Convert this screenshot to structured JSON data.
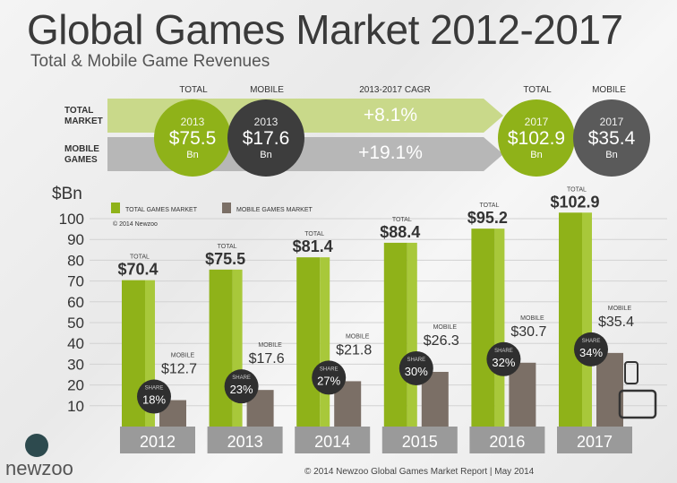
{
  "header": {
    "title": "Global Games Market 2012-2017",
    "subtitle": "Total & Mobile Game Revenues"
  },
  "summary": {
    "col_total": "TOTAL",
    "col_mobile": "MOBILE",
    "col_cagr": "2013-2017 CAGR",
    "col_total_2": "TOTAL",
    "col_mobile_2": "MOBILE",
    "row_total": [
      "TOTAL",
      "MARKET"
    ],
    "row_mobile": [
      "MOBILE",
      "GAMES"
    ],
    "cagr_total": "+8.1%",
    "cagr_mobile": "+19.1%",
    "circles": [
      {
        "year": "2013",
        "value": "$75.5",
        "unit": "Bn"
      },
      {
        "year": "2013",
        "value": "$17.6",
        "unit": "Bn"
      },
      {
        "year": "2017",
        "value": "$102.9",
        "unit": "Bn"
      },
      {
        "year": "2017",
        "value": "$35.4",
        "unit": "Bn"
      }
    ]
  },
  "colors": {
    "total": "#8fb219",
    "total_side": "#a8c83a",
    "mobile": "#7b6f66",
    "share_circle": "#2f2f2f",
    "year_band": "#9a9a9a"
  },
  "chart_data": {
    "type": "bar",
    "ylabel": "$Bn",
    "ylim": [
      0,
      100
    ],
    "yticks": [
      10,
      20,
      30,
      40,
      50,
      60,
      70,
      80,
      90,
      100
    ],
    "categories": [
      "2012",
      "2013",
      "2014",
      "2015",
      "2016",
      "2017"
    ],
    "series": [
      {
        "name": "TOTAL GAMES MARKET",
        "values": [
          70.4,
          75.5,
          81.4,
          88.4,
          95.2,
          102.9
        ]
      },
      {
        "name": "MOBILE GAMES MARKET",
        "values": [
          12.7,
          17.6,
          21.8,
          26.3,
          30.7,
          35.4
        ]
      }
    ],
    "share_values": [
      "18%",
      "23%",
      "27%",
      "30%",
      "32%",
      "34%"
    ],
    "total_labels": [
      "$70.4",
      "$75.5",
      "$81.4",
      "$88.4",
      "$95.2",
      "$102.9"
    ],
    "mobile_labels": [
      "$12.7",
      "$17.6",
      "$21.8",
      "$26.3",
      "$30.7",
      "$35.4"
    ],
    "small_total": "TOTAL",
    "small_mobile": "MOBILE",
    "small_share": "SHARE",
    "legend_copyright": "© 2014 Newzoo",
    "legend_position": "top-left"
  },
  "footer": {
    "copyright": "© 2014 Newzoo Global Games Market Report | May 2014",
    "logo": "newzoo"
  }
}
